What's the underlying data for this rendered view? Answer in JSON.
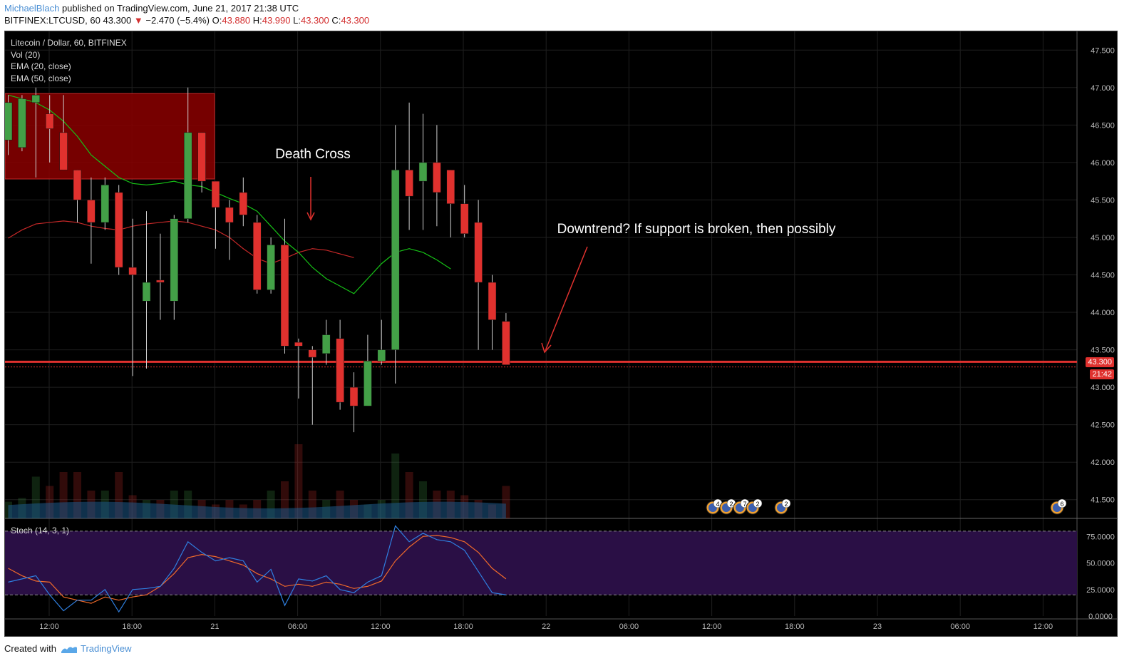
{
  "header": {
    "author": "MichaelBlach",
    "published": "published on TradingView.com, June 21, 2017 21:38 UTC",
    "symbol": "BITFINEX:LTCUSD, 60",
    "last": "43.300",
    "arrow": "▼",
    "change": "−2.470 (−5.4%)",
    "o_label": "O:",
    "o_value": "43.880",
    "h_label": "H:",
    "h_value": "43.990",
    "l_label": "L:",
    "l_value": "43.300",
    "c_label": "C:",
    "c_value": "43.300"
  },
  "legend": {
    "title": "Litecoin / Dollar, 60, BITFINEX",
    "vol": "Vol (20)",
    "ema20": "EMA (20, close)",
    "ema50": "EMA (50, close)",
    "stoch": "Stoch (14, 3, 1)"
  },
  "price_badge": {
    "price": "43.300",
    "time": "21:42"
  },
  "annotations": {
    "death_cross": "Death Cross",
    "downtrend": "Downtrend? If support is broken, then possibly"
  },
  "event_badges": [
    "4",
    "2",
    "7",
    "2",
    "2",
    "6"
  ],
  "footer": {
    "created_with": "Created with",
    "brand": "TradingView"
  },
  "colors": {
    "up": "#43a047",
    "down": "#e0312e",
    "ema20": "#16c216",
    "ema50": "#c62828",
    "zone": "#8b0000",
    "support": "#e0312e",
    "stoch_k": "#2f7fe0",
    "stoch_d": "#f06a2a",
    "stoch_band": "#2a0f45",
    "volume": "#1d5a8a"
  },
  "chart_data": {
    "type": "candlestick",
    "interval": "60",
    "ylim": [
      41.25,
      47.75
    ],
    "y_ticks": [
      "47.500",
      "47.000",
      "46.500",
      "46.000",
      "45.500",
      "45.000",
      "44.500",
      "44.000",
      "43.500",
      "43.000",
      "42.500",
      "42.000",
      "41.500"
    ],
    "x_ticks": [
      "12:00",
      "18:00",
      "21",
      "06:00",
      "12:00",
      "18:00",
      "22",
      "06:00",
      "12:00",
      "18:00",
      "23",
      "06:00",
      "12:00"
    ],
    "candles": [
      {
        "t": 0,
        "o": 46.3,
        "h": 46.9,
        "l": 46.1,
        "c": 46.8
      },
      {
        "t": 1,
        "o": 46.2,
        "h": 46.9,
        "l": 46.15,
        "c": 46.85
      },
      {
        "t": 2,
        "o": 46.8,
        "h": 47.0,
        "l": 45.8,
        "c": 46.9
      },
      {
        "t": 3,
        "o": 46.65,
        "h": 46.9,
        "l": 46.0,
        "c": 46.45
      },
      {
        "t": 4,
        "o": 46.4,
        "h": 46.9,
        "l": 45.9,
        "c": 45.9
      },
      {
        "t": 5,
        "o": 45.9,
        "h": 45.9,
        "l": 45.2,
        "c": 45.5
      },
      {
        "t": 6,
        "o": 45.5,
        "h": 45.8,
        "l": 44.65,
        "c": 45.2
      },
      {
        "t": 7,
        "o": 45.2,
        "h": 45.8,
        "l": 45.1,
        "c": 45.7
      },
      {
        "t": 8,
        "o": 45.6,
        "h": 45.7,
        "l": 44.5,
        "c": 44.6
      },
      {
        "t": 9,
        "o": 44.6,
        "h": 45.25,
        "l": 43.15,
        "c": 44.5
      },
      {
        "t": 10,
        "o": 44.15,
        "h": 45.35,
        "l": 43.25,
        "c": 44.4
      },
      {
        "t": 11,
        "o": 44.43,
        "h": 45.05,
        "l": 43.9,
        "c": 44.4
      },
      {
        "t": 12,
        "o": 44.15,
        "h": 45.3,
        "l": 43.9,
        "c": 45.25
      },
      {
        "t": 13,
        "o": 45.25,
        "h": 47.0,
        "l": 45.2,
        "c": 46.4
      },
      {
        "t": 14,
        "o": 46.4,
        "h": 46.4,
        "l": 45.6,
        "c": 45.75
      },
      {
        "t": 15,
        "o": 45.75,
        "h": 45.75,
        "l": 44.85,
        "c": 45.4
      },
      {
        "t": 16,
        "o": 45.4,
        "h": 45.5,
        "l": 44.7,
        "c": 45.2
      },
      {
        "t": 17,
        "o": 45.6,
        "h": 45.8,
        "l": 45.15,
        "c": 45.3
      },
      {
        "t": 18,
        "o": 45.2,
        "h": 45.3,
        "l": 44.25,
        "c": 44.3
      },
      {
        "t": 19,
        "o": 44.3,
        "h": 45.0,
        "l": 44.25,
        "c": 44.9
      },
      {
        "t": 20,
        "o": 44.9,
        "h": 45.25,
        "l": 43.45,
        "c": 43.55
      },
      {
        "t": 21,
        "o": 43.6,
        "h": 43.65,
        "l": 42.85,
        "c": 43.55
      },
      {
        "t": 22,
        "o": 43.5,
        "h": 43.55,
        "l": 42.5,
        "c": 43.4
      },
      {
        "t": 23,
        "o": 43.45,
        "h": 43.9,
        "l": 43.3,
        "c": 43.7
      },
      {
        "t": 24,
        "o": 43.65,
        "h": 43.9,
        "l": 42.7,
        "c": 42.8
      },
      {
        "t": 25,
        "o": 43.0,
        "h": 43.2,
        "l": 42.4,
        "c": 42.75
      },
      {
        "t": 26,
        "o": 42.75,
        "h": 43.7,
        "l": 42.75,
        "c": 43.35
      },
      {
        "t": 27,
        "o": 43.35,
        "h": 43.9,
        "l": 43.3,
        "c": 43.5
      },
      {
        "t": 28,
        "o": 43.5,
        "h": 46.5,
        "l": 43.05,
        "c": 45.9
      },
      {
        "t": 29,
        "o": 45.9,
        "h": 46.8,
        "l": 45.1,
        "c": 45.55
      },
      {
        "t": 30,
        "o": 45.75,
        "h": 46.65,
        "l": 45.1,
        "c": 46.0
      },
      {
        "t": 31,
        "o": 46.0,
        "h": 46.5,
        "l": 45.15,
        "c": 45.6
      },
      {
        "t": 32,
        "o": 45.9,
        "h": 45.9,
        "l": 45.0,
        "c": 45.45
      },
      {
        "t": 33,
        "o": 45.45,
        "h": 45.7,
        "l": 45.0,
        "c": 45.05
      },
      {
        "t": 34,
        "o": 45.2,
        "h": 45.5,
        "l": 43.5,
        "c": 44.4
      },
      {
        "t": 35,
        "o": 44.4,
        "h": 44.5,
        "l": 43.5,
        "c": 43.9
      },
      {
        "t": 36,
        "o": 43.88,
        "h": 43.99,
        "l": 43.3,
        "c": 43.3
      }
    ],
    "volume": [
      0.18,
      0.22,
      0.45,
      0.35,
      0.5,
      0.5,
      0.3,
      0.3,
      0.5,
      0.25,
      0.2,
      0.2,
      0.3,
      0.3,
      0.2,
      0.15,
      0.2,
      0.15,
      0.2,
      0.3,
      0.4,
      0.8,
      0.3,
      0.2,
      0.3,
      0.2,
      0.15,
      0.2,
      0.7,
      0.5,
      0.4,
      0.3,
      0.3,
      0.25,
      0.2,
      0.15,
      0.35
    ],
    "ema20": [
      46.9,
      46.85,
      46.8,
      46.7,
      46.55,
      46.35,
      46.1,
      45.95,
      45.8,
      45.72,
      45.7,
      45.72,
      45.75,
      45.7,
      45.68,
      45.6,
      45.52,
      45.45,
      45.35,
      45.15,
      44.95,
      44.8,
      44.6,
      44.45,
      44.35,
      44.25,
      44.45,
      44.65,
      44.8,
      44.85,
      44.8,
      44.7,
      44.58
    ],
    "ema50": [
      44.99,
      45.1,
      45.18,
      45.2,
      45.22,
      45.2,
      45.15,
      45.12,
      45.1,
      45.15,
      45.18,
      45.2,
      45.22,
      45.2,
      45.15,
      45.1,
      45.0,
      44.85,
      44.72,
      44.65,
      44.72,
      44.8,
      44.85,
      44.83,
      44.78,
      44.73
    ],
    "support": 43.34,
    "resistance_zone": {
      "top": 46.92,
      "bottom": 45.78
    },
    "stoch_ylim": [
      0,
      90
    ],
    "stoch_ticks": [
      "75.0000",
      "50.0000",
      "25.0000",
      "0.0000"
    ],
    "stoch_k": [
      32,
      35,
      38,
      20,
      5,
      15,
      15,
      25,
      4,
      25,
      26,
      28,
      45,
      70,
      60,
      52,
      55,
      52,
      32,
      44,
      10,
      35,
      33,
      38,
      25,
      22,
      32,
      38,
      85,
      70,
      78,
      72,
      70,
      62,
      42,
      22,
      20
    ],
    "stoch_d": [
      45,
      38,
      33,
      32,
      18,
      15,
      12,
      18,
      15,
      18,
      20,
      28,
      40,
      55,
      58,
      56,
      52,
      48,
      40,
      35,
      28,
      30,
      28,
      32,
      30,
      26,
      28,
      33,
      52,
      65,
      75,
      76,
      74,
      70,
      60,
      45,
      35
    ]
  }
}
